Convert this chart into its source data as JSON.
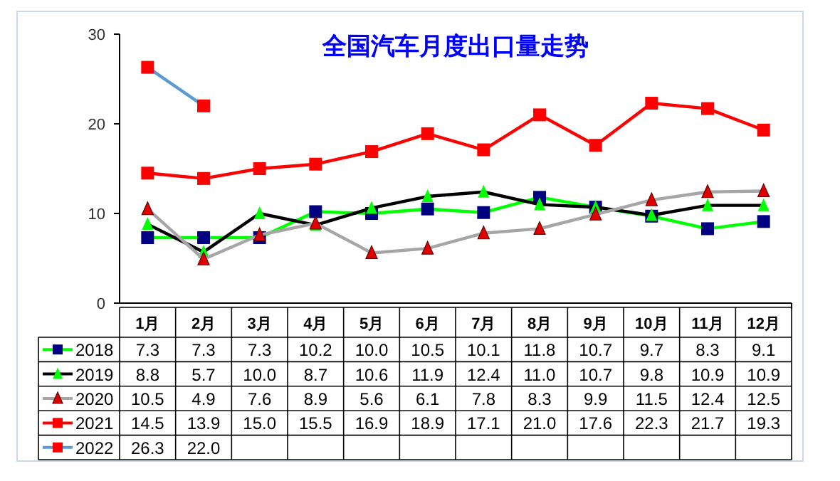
{
  "chart_data": {
    "type": "line",
    "title": "全国汽车月度出口量走势",
    "categories": [
      "1月",
      "2月",
      "3月",
      "4月",
      "5月",
      "6月",
      "7月",
      "8月",
      "9月",
      "10月",
      "11月",
      "12月"
    ],
    "ylim": [
      0,
      30
    ],
    "yticks": [
      0,
      10,
      20,
      30
    ],
    "grid": false,
    "legend": "bottom",
    "series": [
      {
        "name": "2018",
        "color": "#00ff00",
        "marker": "square",
        "colors": [
          "#000080",
          "#000080",
          "#000080",
          "#000080",
          "#000080",
          "#000080",
          "#000080",
          "#000080",
          "#000080",
          "#000080",
          "#000080",
          "#000080"
        ],
        "values": [
          7.3,
          7.3,
          7.3,
          10.2,
          10.0,
          10.5,
          10.1,
          11.8,
          10.7,
          9.7,
          8.3,
          9.1
        ],
        "value_labels": [
          "7.3",
          "7.3",
          "7.3",
          "10.2",
          "10.0",
          "10.5",
          "10.1",
          "11.8",
          "10.7",
          "9.7",
          "8.3",
          "9.1"
        ]
      },
      {
        "name": "2019",
        "color": "#000000",
        "marker": "triangle",
        "colors": [
          "#00ff00",
          "#00ff00",
          "#00ff00",
          "#00ff00",
          "#00ff00",
          "#00ff00",
          "#00ff00",
          "#00ff00",
          "#00ff00",
          "#00ff00",
          "#00ff00",
          "#00ff00"
        ],
        "values": [
          8.8,
          5.7,
          10.0,
          8.7,
          10.6,
          11.9,
          12.4,
          11.0,
          10.7,
          9.8,
          10.9,
          10.9
        ],
        "value_labels": [
          "8.8",
          "5.7",
          "10.0",
          "8.7",
          "10.6",
          "11.9",
          "12.4",
          "11.0",
          "10.7",
          "9.8",
          "10.9",
          "10.9"
        ]
      },
      {
        "name": "2020",
        "color": "#a6a6a6",
        "marker": "triangle",
        "colors": [
          "#e00000",
          "#e00000",
          "#e00000",
          "#e00000",
          "#e00000",
          "#e00000",
          "#e00000",
          "#e00000",
          "#e00000",
          "#e00000",
          "#e00000",
          "#e00000"
        ],
        "values": [
          10.5,
          4.9,
          7.6,
          8.9,
          5.6,
          6.1,
          7.8,
          8.3,
          9.9,
          11.5,
          12.4,
          12.5
        ],
        "value_labels": [
          "10.5",
          "4.9",
          "7.6",
          "8.9",
          "5.6",
          "6.1",
          "7.8",
          "8.3",
          "9.9",
          "11.5",
          "12.4",
          "12.5"
        ]
      },
      {
        "name": "2021",
        "color": "#ff0000",
        "marker": "square",
        "colors": [
          "#ff0000",
          "#ff0000",
          "#ff0000",
          "#ff0000",
          "#ff0000",
          "#ff0000",
          "#ff0000",
          "#ff0000",
          "#ff0000",
          "#ff0000",
          "#ff0000",
          "#ff0000"
        ],
        "values": [
          14.5,
          13.9,
          15.0,
          15.5,
          16.9,
          18.9,
          17.1,
          21.0,
          17.6,
          22.3,
          21.7,
          19.3
        ],
        "value_labels": [
          "14.5",
          "13.9",
          "15.0",
          "15.5",
          "16.9",
          "18.9",
          "17.1",
          "21.0",
          "17.6",
          "22.3",
          "21.7",
          "19.3"
        ]
      },
      {
        "name": "2022",
        "color": "#5b9bd5",
        "marker": "square",
        "colors": [
          "#ff0000",
          "#ff0000",
          null,
          null,
          null,
          null,
          null,
          null,
          null,
          null,
          null,
          null
        ],
        "values": [
          26.3,
          22.0,
          null,
          null,
          null,
          null,
          null,
          null,
          null,
          null,
          null,
          null
        ],
        "value_labels": [
          "26.3",
          "22.0",
          null,
          null,
          null,
          null,
          null,
          null,
          null,
          null,
          null,
          null
        ]
      }
    ]
  }
}
